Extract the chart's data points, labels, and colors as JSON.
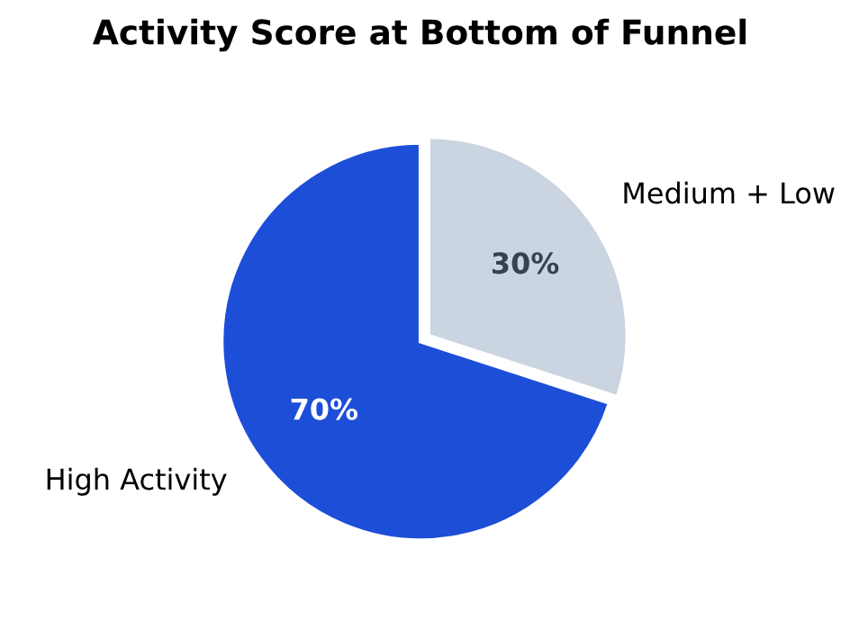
{
  "chart_data": {
    "type": "pie",
    "title": "Activity Score at Bottom of Funnel",
    "categories": [
      "High Activity",
      "Medium + Low"
    ],
    "values": [
      70,
      30
    ],
    "colors": [
      "#1d4ed8",
      "#cbd5e1"
    ],
    "value_labels": [
      "70%",
      "30%"
    ],
    "legend": false
  }
}
